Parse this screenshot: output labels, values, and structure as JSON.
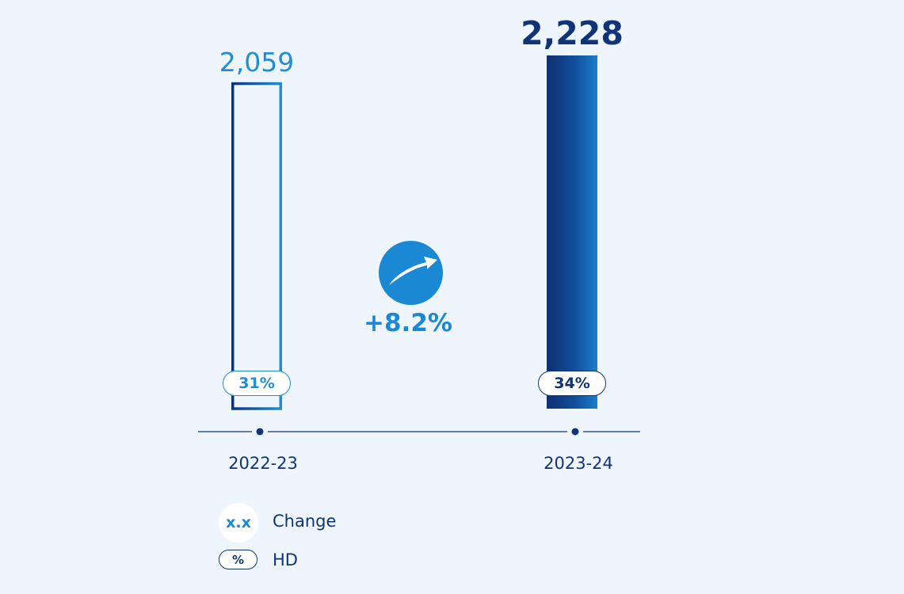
{
  "chart_data": {
    "type": "bar",
    "categories": [
      "2022-23",
      "2023-24"
    ],
    "values": [
      2059,
      2228
    ],
    "value_labels": [
      "2,059",
      "2,228"
    ],
    "hd_labels": [
      "31%",
      "34%"
    ],
    "hd_values": [
      31,
      34
    ],
    "ylim": [
      0,
      2228
    ],
    "change_label": "+8.2%",
    "change_value": 8.2,
    "legend": [
      {
        "symbol": "x.x",
        "label": "Change"
      },
      {
        "symbol": "%",
        "label": "HD"
      }
    ]
  },
  "colors": {
    "background": "#eef5fd",
    "light_blue": "#1f8ed6",
    "dark_navy": "#0f3478"
  },
  "icons": {
    "change": "trend-up-arrow-icon"
  }
}
